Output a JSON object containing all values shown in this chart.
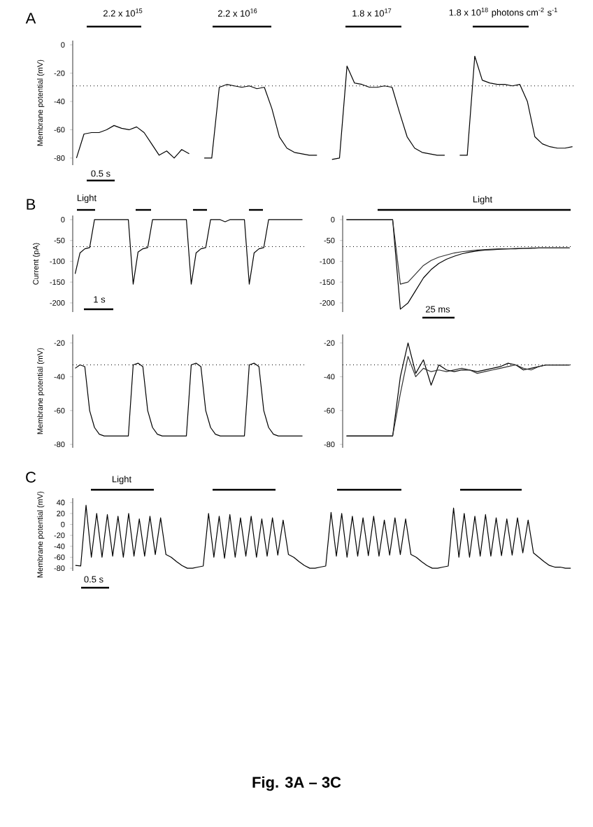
{
  "chart_data": [
    {
      "type": "line",
      "ylabel": "Membrane potential (mV)",
      "tick_labels": "y",
      "ylim": [
        -85,
        3
      ],
      "yticks": [
        0,
        -20,
        -40,
        -60,
        -80
      ],
      "categories": [
        null,
        null,
        null,
        null,
        null,
        null,
        null,
        null,
        null,
        null,
        null,
        null,
        null,
        null,
        null,
        null,
        null,
        null,
        null,
        null,
        null,
        null,
        null,
        null,
        null,
        null,
        null,
        null,
        null,
        null,
        null,
        null,
        null,
        null,
        null,
        null,
        null,
        null,
        null,
        null,
        null,
        null,
        null,
        null,
        null,
        null,
        null,
        null,
        null,
        null,
        null,
        null,
        null,
        null,
        null,
        null,
        null,
        null,
        null,
        null,
        null,
        null,
        null,
        null,
        null,
        null,
        null
      ],
      "series": [
        {
          "color": "#000000",
          "values": [
            -80,
            -63,
            -62,
            -62,
            -60,
            -57,
            -59,
            -60,
            -58,
            -62,
            -70,
            -78,
            -75,
            -80,
            -74,
            -77,
            null,
            -80,
            -80,
            -30,
            -28,
            -29,
            -30,
            -29,
            -31,
            -30,
            -45,
            -65,
            -73,
            -76,
            -77,
            -78,
            -78,
            null,
            -81,
            -80,
            -15,
            -27,
            -28,
            -30,
            -30,
            -29,
            -30,
            -48,
            -65,
            -73,
            -76,
            -77,
            -78,
            -78,
            null,
            -78,
            -78,
            -8,
            -25,
            -27,
            -28,
            -28,
            -29,
            -28,
            -40,
            -65,
            -70,
            -72,
            -73,
            -73,
            -72
          ]
        }
      ],
      "ref_lines": [
        {
          "axis": "y",
          "value": -29,
          "line_style": "dotted"
        }
      ],
      "annotations": [
        "A",
        "2.2 x 10$^{15}$",
        "2.2 x 10$^{16}$",
        "1.8 x 10$^{17}$",
        "1.8 x 10$^{18}$ photons cm$^{-2}$ s$^{-1}$",
        "0.5 s"
      ]
    },
    {
      "type": "line",
      "ylabel": "Current (pA)",
      "tick_labels": "y",
      "ylim": [
        -222,
        10
      ],
      "yticks": [
        0,
        -50,
        -100,
        -150,
        -200
      ],
      "categories": [
        null,
        null,
        null,
        null,
        null,
        null,
        null,
        null,
        null,
        null,
        null,
        null,
        null,
        null,
        null,
        null,
        null,
        null,
        null,
        null,
        null,
        null,
        null,
        null,
        null,
        null,
        null,
        null,
        null,
        null,
        null,
        null,
        null,
        null,
        null,
        null,
        null,
        null,
        null,
        null,
        null,
        null,
        null,
        null,
        null,
        null,
        null,
        null
      ],
      "series": [
        {
          "color": "#000000",
          "values": [
            -130,
            -80,
            -70,
            -67,
            0,
            0,
            0,
            0,
            0,
            0,
            0,
            0,
            -155,
            -78,
            -70,
            -67,
            0,
            0,
            0,
            0,
            0,
            0,
            0,
            0,
            -155,
            -80,
            -70,
            -67,
            0,
            0,
            0,
            -5,
            0,
            0,
            0,
            0,
            -155,
            -80,
            -70,
            -67,
            0,
            0,
            0,
            0,
            0,
            0,
            0,
            0
          ]
        }
      ],
      "ref_lines": [
        {
          "axis": "y",
          "value": -65,
          "line_style": "dotted"
        }
      ],
      "annotations": [
        "B",
        "Light",
        "1 s"
      ]
    },
    {
      "type": "line",
      "tick_labels": "y",
      "ylim": [
        -222,
        10
      ],
      "yticks": [
        0,
        -50,
        -100,
        -150,
        -200
      ],
      "categories": [
        null,
        null,
        null,
        null,
        null,
        null,
        null,
        null,
        null,
        null,
        null,
        null,
        null,
        null,
        null,
        null,
        null,
        null,
        null,
        null,
        null,
        null,
        null,
        null,
        null,
        null,
        null,
        null,
        null,
        null
      ],
      "series": [
        {
          "color": "#000000",
          "values": [
            0,
            0,
            0,
            0,
            0,
            0,
            0,
            -215,
            -200,
            -170,
            -140,
            -120,
            -105,
            -95,
            -88,
            -82,
            -78,
            -75,
            -73,
            -72,
            -71,
            -70,
            -70,
            -69,
            -69,
            -68,
            -68,
            -68,
            -68,
            -68
          ]
        },
        {
          "color": "#303030",
          "values": [
            0,
            0,
            0,
            0,
            0,
            0,
            0,
            -155,
            -150,
            -130,
            -110,
            -98,
            -90,
            -85,
            -80,
            -77,
            -75,
            -73,
            -72,
            -71,
            -70,
            -70,
            -69,
            -69,
            -68,
            -68,
            -68,
            -68,
            -68,
            -68
          ]
        }
      ],
      "ref_lines": [
        {
          "axis": "y",
          "value": -65,
          "line_style": "dotted"
        }
      ],
      "annotations": [
        "Light",
        "25 ms"
      ]
    },
    {
      "type": "line",
      "ylabel": "Membrane potential (mV)",
      "tick_labels": "y",
      "ylim": [
        -82,
        -15
      ],
      "yticks": [
        -20,
        -40,
        -60,
        -80
      ],
      "categories": [
        null,
        null,
        null,
        null,
        null,
        null,
        null,
        null,
        null,
        null,
        null,
        null,
        null,
        null,
        null,
        null,
        null,
        null,
        null,
        null,
        null,
        null,
        null,
        null,
        null,
        null,
        null,
        null,
        null,
        null,
        null,
        null,
        null,
        null,
        null,
        null,
        null,
        null,
        null,
        null,
        null,
        null,
        null,
        null,
        null,
        null,
        null,
        null
      ],
      "series": [
        {
          "color": "#000000",
          "values": [
            -35,
            -33,
            -34,
            -60,
            -70,
            -74,
            -75,
            -75,
            -75,
            -75,
            -75,
            -75,
            -33,
            -32,
            -34,
            -60,
            -70,
            -74,
            -75,
            -75,
            -75,
            -75,
            -75,
            -75,
            -33,
            -32,
            -34,
            -60,
            -70,
            -74,
            -75,
            -75,
            -75,
            -75,
            -75,
            -75,
            -33,
            -32,
            -34,
            -60,
            -70,
            -74,
            -75,
            -75,
            -75,
            -75,
            -75,
            -75
          ]
        }
      ],
      "ref_lines": [
        {
          "axis": "y",
          "value": -33,
          "line_style": "dotted"
        }
      ]
    },
    {
      "type": "line",
      "tick_labels": "y",
      "ylim": [
        -82,
        -15
      ],
      "yticks": [
        -20,
        -40,
        -60,
        -80
      ],
      "categories": [
        null,
        null,
        null,
        null,
        null,
        null,
        null,
        null,
        null,
        null,
        null,
        null,
        null,
        null,
        null,
        null,
        null,
        null,
        null,
        null,
        null,
        null,
        null,
        null,
        null,
        null,
        null,
        null,
        null,
        null
      ],
      "series": [
        {
          "color": "#000000",
          "values": [
            -75,
            -75,
            -75,
            -75,
            -75,
            -75,
            -75,
            -40,
            -20,
            -38,
            -30,
            -45,
            -33,
            -36,
            -37,
            -36,
            -36,
            -37,
            -36,
            -35,
            -34,
            -32,
            -33,
            -36,
            -35,
            -34,
            -33,
            -33,
            -33,
            -33
          ]
        },
        {
          "color": "#303030",
          "values": [
            -75,
            -75,
            -75,
            -75,
            -75,
            -75,
            -75,
            -50,
            -28,
            -40,
            -35,
            -37,
            -36,
            -37,
            -36,
            -35,
            -36,
            -38,
            -37,
            -36,
            -35,
            -34,
            -33,
            -35,
            -36,
            -34,
            -33,
            -33,
            -33,
            -33
          ]
        }
      ],
      "ref_lines": [
        {
          "axis": "y",
          "value": -33,
          "line_style": "dotted"
        }
      ]
    },
    {
      "type": "line",
      "ylabel": "Membrane potential (mV)",
      "tick_labels": "y",
      "ylim": [
        -85,
        48
      ],
      "yticks": [
        40,
        20,
        0,
        -20,
        -40,
        -60,
        -80
      ],
      "categories": [
        null,
        null,
        null,
        null,
        null,
        null,
        null,
        null,
        null,
        null,
        null,
        null,
        null,
        null,
        null,
        null,
        null,
        null,
        null,
        null,
        null,
        null,
        null,
        null,
        null,
        null,
        null,
        null,
        null,
        null,
        null,
        null,
        null,
        null,
        null,
        null,
        null,
        null,
        null,
        null,
        null,
        null,
        null,
        null,
        null,
        null,
        null,
        null,
        null,
        null,
        null,
        null,
        null,
        null,
        null,
        null,
        null,
        null,
        null,
        null,
        null,
        null,
        null,
        null,
        null,
        null,
        null,
        null,
        null,
        null,
        null,
        null,
        null,
        null,
        null,
        null,
        null,
        null,
        null,
        null,
        null,
        null,
        null,
        null,
        null,
        null,
        null,
        null,
        null,
        null,
        null,
        null,
        null,
        null
      ],
      "series": [
        {
          "color": "#000000",
          "values": [
            -75,
            -76,
            35,
            -60,
            20,
            -60,
            18,
            -58,
            15,
            -60,
            20,
            -58,
            10,
            -58,
            15,
            -55,
            12,
            -55,
            -60,
            -68,
            -75,
            -80,
            -80,
            -78,
            -76,
            20,
            -60,
            15,
            -62,
            18,
            -60,
            12,
            -58,
            15,
            -60,
            10,
            -58,
            12,
            -56,
            8,
            -55,
            -60,
            -68,
            -75,
            -80,
            -80,
            -78,
            -76,
            22,
            -58,
            20,
            -60,
            15,
            -58,
            12,
            -57,
            15,
            -58,
            8,
            -56,
            12,
            -55,
            10,
            -55,
            -60,
            -68,
            -75,
            -80,
            -80,
            -78,
            -76,
            30,
            -60,
            20,
            -60,
            15,
            -58,
            18,
            -58,
            12,
            -57,
            10,
            -56,
            12,
            -52,
            8,
            -52,
            -60,
            -68,
            -75,
            -78,
            -78,
            -80,
            -80
          ]
        }
      ],
      "annotations": [
        "C",
        "Light",
        "0.5 s",
        "Fig. 3A – 3C"
      ]
    }
  ]
}
